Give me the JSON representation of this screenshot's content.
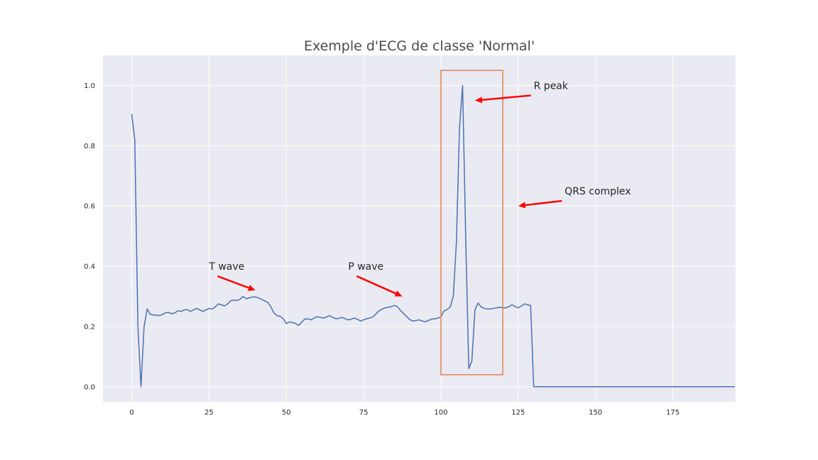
{
  "chart_data": {
    "type": "line",
    "title": "Exemple d'ECG de classe 'Normal'",
    "xlabel": "",
    "ylabel": "",
    "xlim": [
      -9.3,
      195.3
    ],
    "ylim": [
      -0.05,
      1.1
    ],
    "x_ticks": [
      0,
      25,
      50,
      75,
      100,
      125,
      150,
      175
    ],
    "y_ticks": [
      0.0,
      0.2,
      0.4,
      0.6,
      0.8,
      1.0
    ],
    "x_tick_labels": [
      "0",
      "25",
      "50",
      "75",
      "100",
      "125",
      "150",
      "175"
    ],
    "y_tick_labels": [
      "0.0",
      "0.2",
      "0.4",
      "0.6",
      "0.8",
      "1.0"
    ],
    "grid": true,
    "line_color": "#4c72b0",
    "series": [
      {
        "values": [
          0.905,
          0.82,
          0.2,
          0.0,
          0.2,
          0.258,
          0.24,
          0.238,
          0.238,
          0.236,
          0.24,
          0.246,
          0.246,
          0.242,
          0.246,
          0.252,
          0.25,
          0.255,
          0.256,
          0.25,
          0.255,
          0.26,
          0.255,
          0.25,
          0.255,
          0.26,
          0.258,
          0.265,
          0.275,
          0.272,
          0.268,
          0.275,
          0.285,
          0.288,
          0.286,
          0.29,
          0.3,
          0.292,
          0.295,
          0.298,
          0.298,
          0.295,
          0.29,
          0.285,
          0.28,
          0.265,
          0.245,
          0.236,
          0.234,
          0.226,
          0.21,
          0.215,
          0.213,
          0.21,
          0.203,
          0.215,
          0.225,
          0.225,
          0.222,
          0.228,
          0.233,
          0.23,
          0.228,
          0.232,
          0.236,
          0.23,
          0.226,
          0.227,
          0.23,
          0.226,
          0.222,
          0.224,
          0.228,
          0.224,
          0.218,
          0.222,
          0.226,
          0.228,
          0.232,
          0.242,
          0.252,
          0.258,
          0.262,
          0.264,
          0.266,
          0.27,
          0.265,
          0.252,
          0.242,
          0.232,
          0.222,
          0.218,
          0.22,
          0.222,
          0.218,
          0.216,
          0.22,
          0.225,
          0.225,
          0.228,
          0.232,
          0.252,
          0.256,
          0.265,
          0.3,
          0.48,
          0.86,
          1.0,
          0.5,
          0.06,
          0.085,
          0.255,
          0.278,
          0.265,
          0.26,
          0.258,
          0.258,
          0.26,
          0.262,
          0.264,
          0.262,
          0.262,
          0.266,
          0.272,
          0.266,
          0.262,
          0.268,
          0.275,
          0.272,
          0.27,
          0.0,
          0.0,
          0.0,
          0.0,
          0.0,
          0.0,
          0.0,
          0.0,
          0.0,
          0.0,
          0.0,
          0.0,
          0.0,
          0.0,
          0.0,
          0.0,
          0.0,
          0.0,
          0.0,
          0.0,
          0.0,
          0.0,
          0.0,
          0.0,
          0.0,
          0.0,
          0.0,
          0.0,
          0.0,
          0.0,
          0.0,
          0.0,
          0.0,
          0.0,
          0.0,
          0.0,
          0.0,
          0.0,
          0.0,
          0.0,
          0.0,
          0.0,
          0.0,
          0.0,
          0.0,
          0.0,
          0.0,
          0.0,
          0.0,
          0.0,
          0.0,
          0.0,
          0.0,
          0.0,
          0.0,
          0.0,
          0.0,
          0.0,
          0.0,
          0.0,
          0.0,
          0.0,
          0.0,
          0.0,
          0.0,
          0.0
        ]
      }
    ],
    "highlight_box": {
      "x0": 100,
      "x1": 120,
      "y0": 0.04,
      "y1": 1.05,
      "color": "#dd8452"
    },
    "annotations": [
      {
        "text": "R peak",
        "text_xy": [
          130,
          1.0
        ],
        "arrow_to": [
          111,
          0.95
        ],
        "color": "#ff0000"
      },
      {
        "text": "QRS complex",
        "text_xy": [
          140,
          0.65
        ],
        "arrow_to": [
          125,
          0.6
        ],
        "color": "#ff0000"
      },
      {
        "text": "T wave",
        "text_xy": [
          25,
          0.4
        ],
        "arrow_to": [
          40,
          0.32
        ],
        "color": "#ff0000"
      },
      {
        "text": "P wave",
        "text_xy": [
          70,
          0.4
        ],
        "arrow_to": [
          87.5,
          0.3
        ],
        "color": "#ff0000"
      }
    ],
    "background_color": "#eaeaf2",
    "grid_color": "#ffffff"
  }
}
